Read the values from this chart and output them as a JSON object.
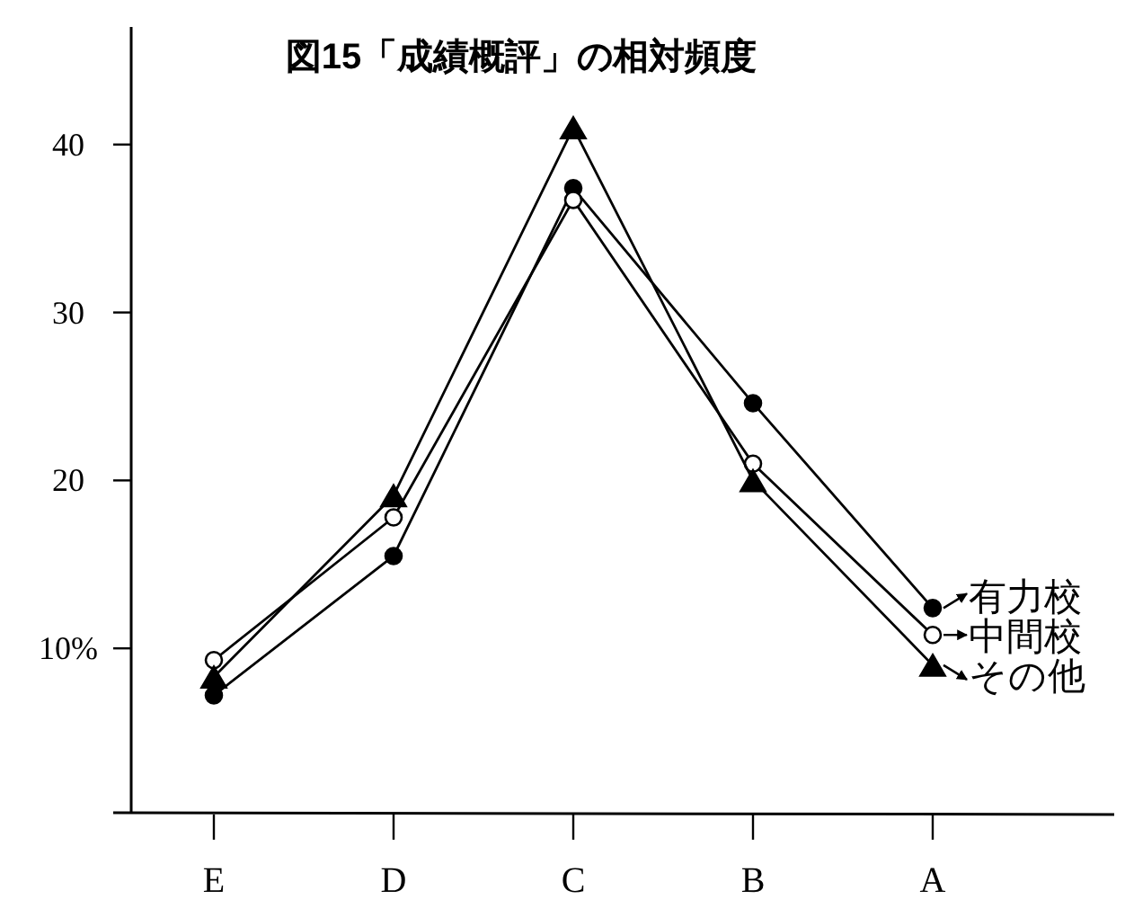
{
  "chart_data": {
    "type": "line",
    "title": "図15「成績概評」の相対頻度",
    "categories": [
      "E",
      "D",
      "C",
      "B",
      "A"
    ],
    "series": [
      {
        "name": "有力校",
        "color": "#000000",
        "marker": "circle",
        "values": [
          7.2,
          15.5,
          37.4,
          24.6,
          12.4
        ]
      },
      {
        "name": "中間校",
        "color": "#000000",
        "marker": "circle",
        "values": [
          9.3,
          17.8,
          36.7,
          21.0,
          10.8
        ]
      },
      {
        "name": "その他",
        "color": "#000000",
        "marker": "triangle",
        "values": [
          8.3,
          19.1,
          41.0,
          20.0,
          9.0
        ]
      }
    ],
    "legend": "right",
    "ylim": [
      0,
      47
    ],
    "yticks": [
      {
        "value": 10,
        "label": "10%"
      },
      20,
      30,
      40
    ]
  }
}
